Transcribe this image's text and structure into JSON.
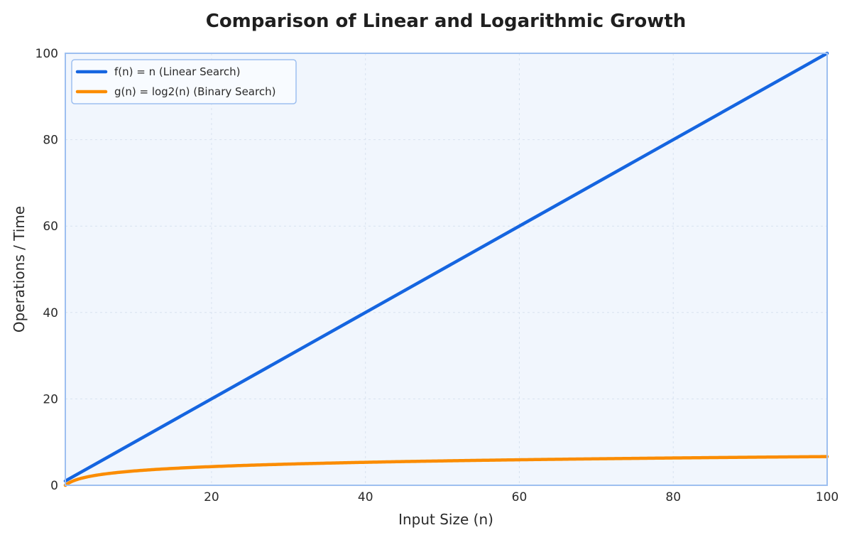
{
  "chart_data": {
    "type": "line",
    "title": "Comparison of Linear and Logarithmic Growth",
    "xlabel": "Input Size (n)",
    "ylabel": "Operations / Time",
    "xlim": [
      1,
      100
    ],
    "ylim": [
      0,
      100
    ],
    "x_ticks": [
      20,
      40,
      60,
      80,
      100
    ],
    "y_ticks": [
      0,
      20,
      40,
      60,
      80,
      100
    ],
    "grid": true,
    "legend_position": "top-left",
    "x": [
      1,
      2,
      4,
      8,
      16,
      32,
      64,
      100
    ],
    "series": [
      {
        "name": "f(n) = n (Linear Search)",
        "color": "#1565e0",
        "values": [
          1,
          2,
          4,
          8,
          16,
          32,
          64,
          100
        ]
      },
      {
        "name": "g(n) = log2(n) (Binary Search)",
        "color": "#fb8c00",
        "values": [
          0,
          1,
          2,
          3,
          4,
          5,
          6,
          6.64
        ]
      }
    ],
    "colors": {
      "plot_background": "#f1f6fd",
      "plot_border": "#9dbff0",
      "legend_border": "#9dbff0"
    }
  }
}
